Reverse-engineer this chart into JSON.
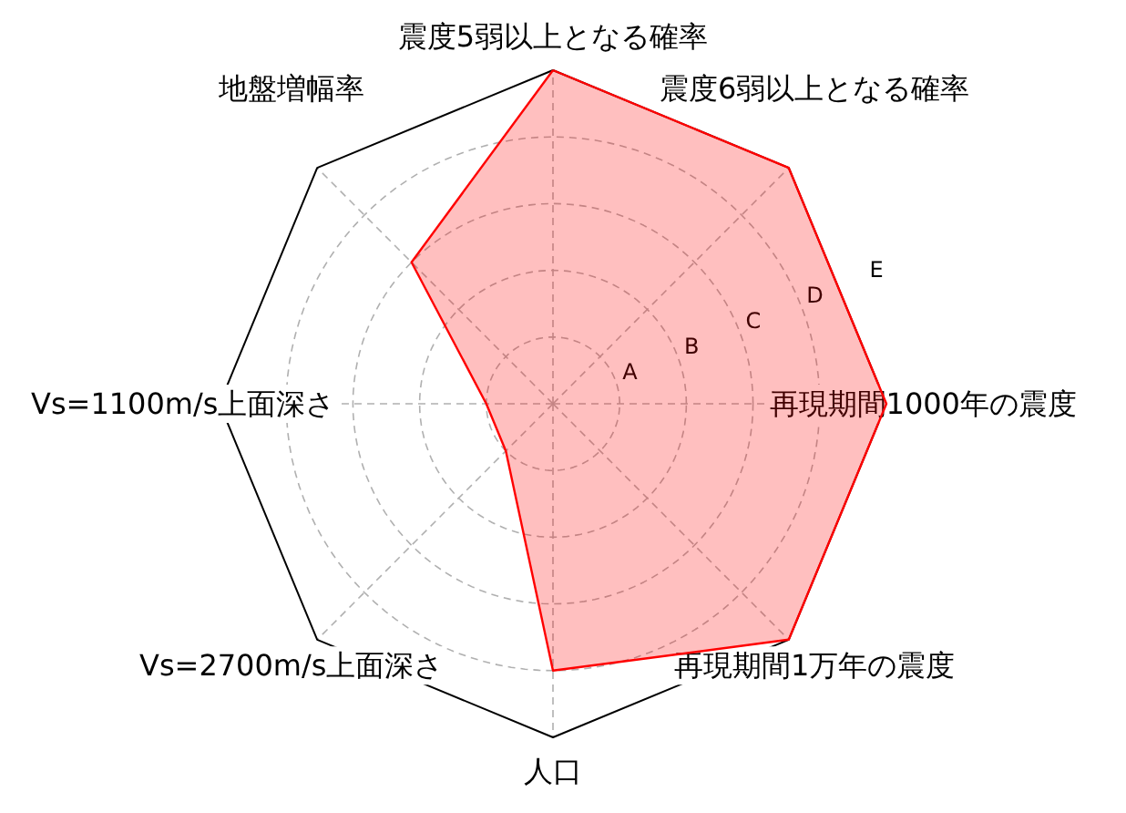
{
  "chart_data": {
    "type": "radar",
    "categories": [
      "震度5弱以上となる確率",
      "震度6弱以上となる確率",
      "再現期間1000年の震度",
      "再現期間1万年の震度",
      "人口",
      "Vs=2700m/s上面深さ",
      "Vs=1100m/s上面深さ",
      "地盤増幅率"
    ],
    "series": [
      {
        "color": "#ff0000",
        "values": [
          5,
          5,
          5,
          5,
          4,
          1,
          1,
          3
        ]
      }
    ],
    "ylim": [
      0,
      5
    ],
    "yticks": [
      {
        "value": 1,
        "label": "A"
      },
      {
        "value": 2,
        "label": "B"
      },
      {
        "value": 3,
        "label": "C"
      },
      {
        "value": 4,
        "label": "D"
      },
      {
        "value": 5,
        "label": "E"
      }
    ],
    "grid": true,
    "marker": "none",
    "line_style": "solid"
  }
}
